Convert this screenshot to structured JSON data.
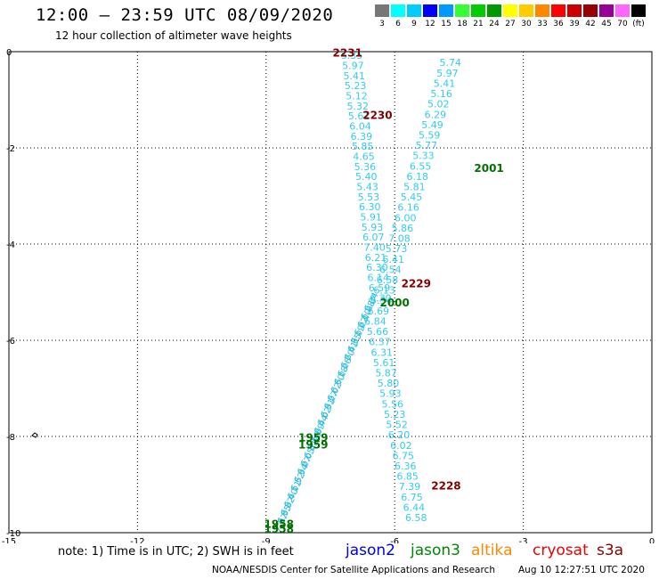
{
  "header": {
    "title": "12:00 – 23:59 UTC 08/09/2020",
    "subtitle": "12 hour collection of altimeter wave heights"
  },
  "scale": {
    "labels": [
      "3",
      "6",
      "9",
      "12",
      "15",
      "18",
      "21",
      "24",
      "27",
      "30",
      "33",
      "36",
      "39",
      "42",
      "45",
      "70",
      "(ft)"
    ],
    "colors": [
      "#777777",
      "#00ffff",
      "#00ccff",
      "#0000ff",
      "#0099ff",
      "#33ff33",
      "#00cc00",
      "#009900",
      "#ffff00",
      "#ffcc00",
      "#ff8800",
      "#ff0000",
      "#cc0000",
      "#990000",
      "#990099",
      "#ff66ff",
      "#000000"
    ]
  },
  "chart_data": {
    "type": "map",
    "x_ticks": [
      "-15",
      "-12",
      "-9",
      "-6",
      "-3",
      "0"
    ],
    "y_ticks": [
      "0",
      "-2",
      "-4",
      "-6",
      "-8",
      "-10"
    ],
    "xlim": [
      -15,
      0
    ],
    "ylim": [
      -10,
      0
    ],
    "grid": true,
    "tracks": [
      {
        "label": "2231",
        "color": "#800000",
        "lon": -7.1,
        "lat": -0.1
      },
      {
        "label": "2230",
        "color": "#800000",
        "lon": -6.4,
        "lat": -1.4
      },
      {
        "label": "2001",
        "color": "#007000",
        "lon": -3.8,
        "lat": -2.5
      },
      {
        "label": "2229",
        "color": "#800000",
        "lon": -5.5,
        "lat": -4.9
      },
      {
        "label": "2000",
        "color": "#007000",
        "lon": -6.0,
        "lat": -5.3
      },
      {
        "label": "1959",
        "color": "#007000",
        "lon": -7.9,
        "lat": -8.1
      },
      {
        "label": "1959",
        "color": "#007000",
        "lon": -7.9,
        "lat": -8.25
      },
      {
        "label": "2228",
        "color": "#800000",
        "lon": -4.8,
        "lat": -9.1
      },
      {
        "label": "1958",
        "color": "#007000",
        "lon": -8.7,
        "lat": -9.9
      },
      {
        "label": "1958",
        "color": "#007000",
        "lon": -8.7,
        "lat": -10.0
      }
    ],
    "cyan_columns": [
      {
        "lon": -7.0,
        "lat": -0.15,
        "values": [
          "5.35",
          "5.97",
          "5.41",
          "5.23",
          "5.12",
          "5.32",
          "5.61",
          "6.04",
          "6.39",
          "5.85",
          "4.65",
          "5.36",
          "5.40",
          "5.43",
          "5.53",
          "6.30",
          "5.91",
          "5.93",
          "6.07",
          "7.40",
          "6.21",
          "6.30",
          "6.14",
          "6.59",
          "6.30"
        ]
      },
      {
        "lon": -4.7,
        "lat": -0.3,
        "values": [
          "5.74",
          "5.97",
          "5.41",
          "5.16",
          "5.02",
          "6.29",
          "5.49",
          "5.59",
          "5.77",
          "5.33",
          "6.55",
          "6.18",
          "5.81",
          "5.45",
          "6.16",
          "6.00",
          "5.86",
          "7.08",
          "5.73",
          "6.41",
          "6.54",
          "6.58",
          "6.13",
          "5.34",
          "6.69",
          "5.84",
          "5.66",
          "6.37",
          "6.31",
          "5.61",
          "5.87",
          "5.80",
          "5.93",
          "5.56",
          "5.23",
          "5.52",
          "6.20",
          "6.02",
          "6.75",
          "6.36",
          "6.85",
          "7.39",
          "6.75",
          "6.44",
          "6.58"
        ]
      },
      {
        "lon": -8.7,
        "lat": -10.0,
        "values": [
          "7.27",
          "6.35",
          "6.82",
          "6.40",
          "6.11",
          "6.52",
          "6.34",
          "6.27",
          "6.05",
          "6.81",
          "6.18",
          "6.39",
          "6.44",
          "6.02",
          "6.31",
          "6.27",
          "6.02",
          "6.50",
          "6.18",
          "6.26",
          "6.70",
          "6.41",
          "6.35",
          "6.19",
          "6.22",
          "6.10",
          "6.28",
          "6.04"
        ]
      }
    ]
  },
  "footer": {
    "note": "note: 1) Time is in UTC; 2) SWH is in feet",
    "satellites": [
      {
        "name": "jason2",
        "color": "#0000ee"
      },
      {
        "name": "jason3",
        "color": "#008800"
      },
      {
        "name": "altika",
        "color": "#ff8800"
      },
      {
        "name": "cryosat",
        "color": "#ee0000"
      },
      {
        "name": "s3a",
        "color": "#880000"
      }
    ],
    "credit": "NOAA/NESDIS Center for Satellite Applications and Research",
    "timestamp": "Aug 10 12:27:51 UTC 2020"
  }
}
